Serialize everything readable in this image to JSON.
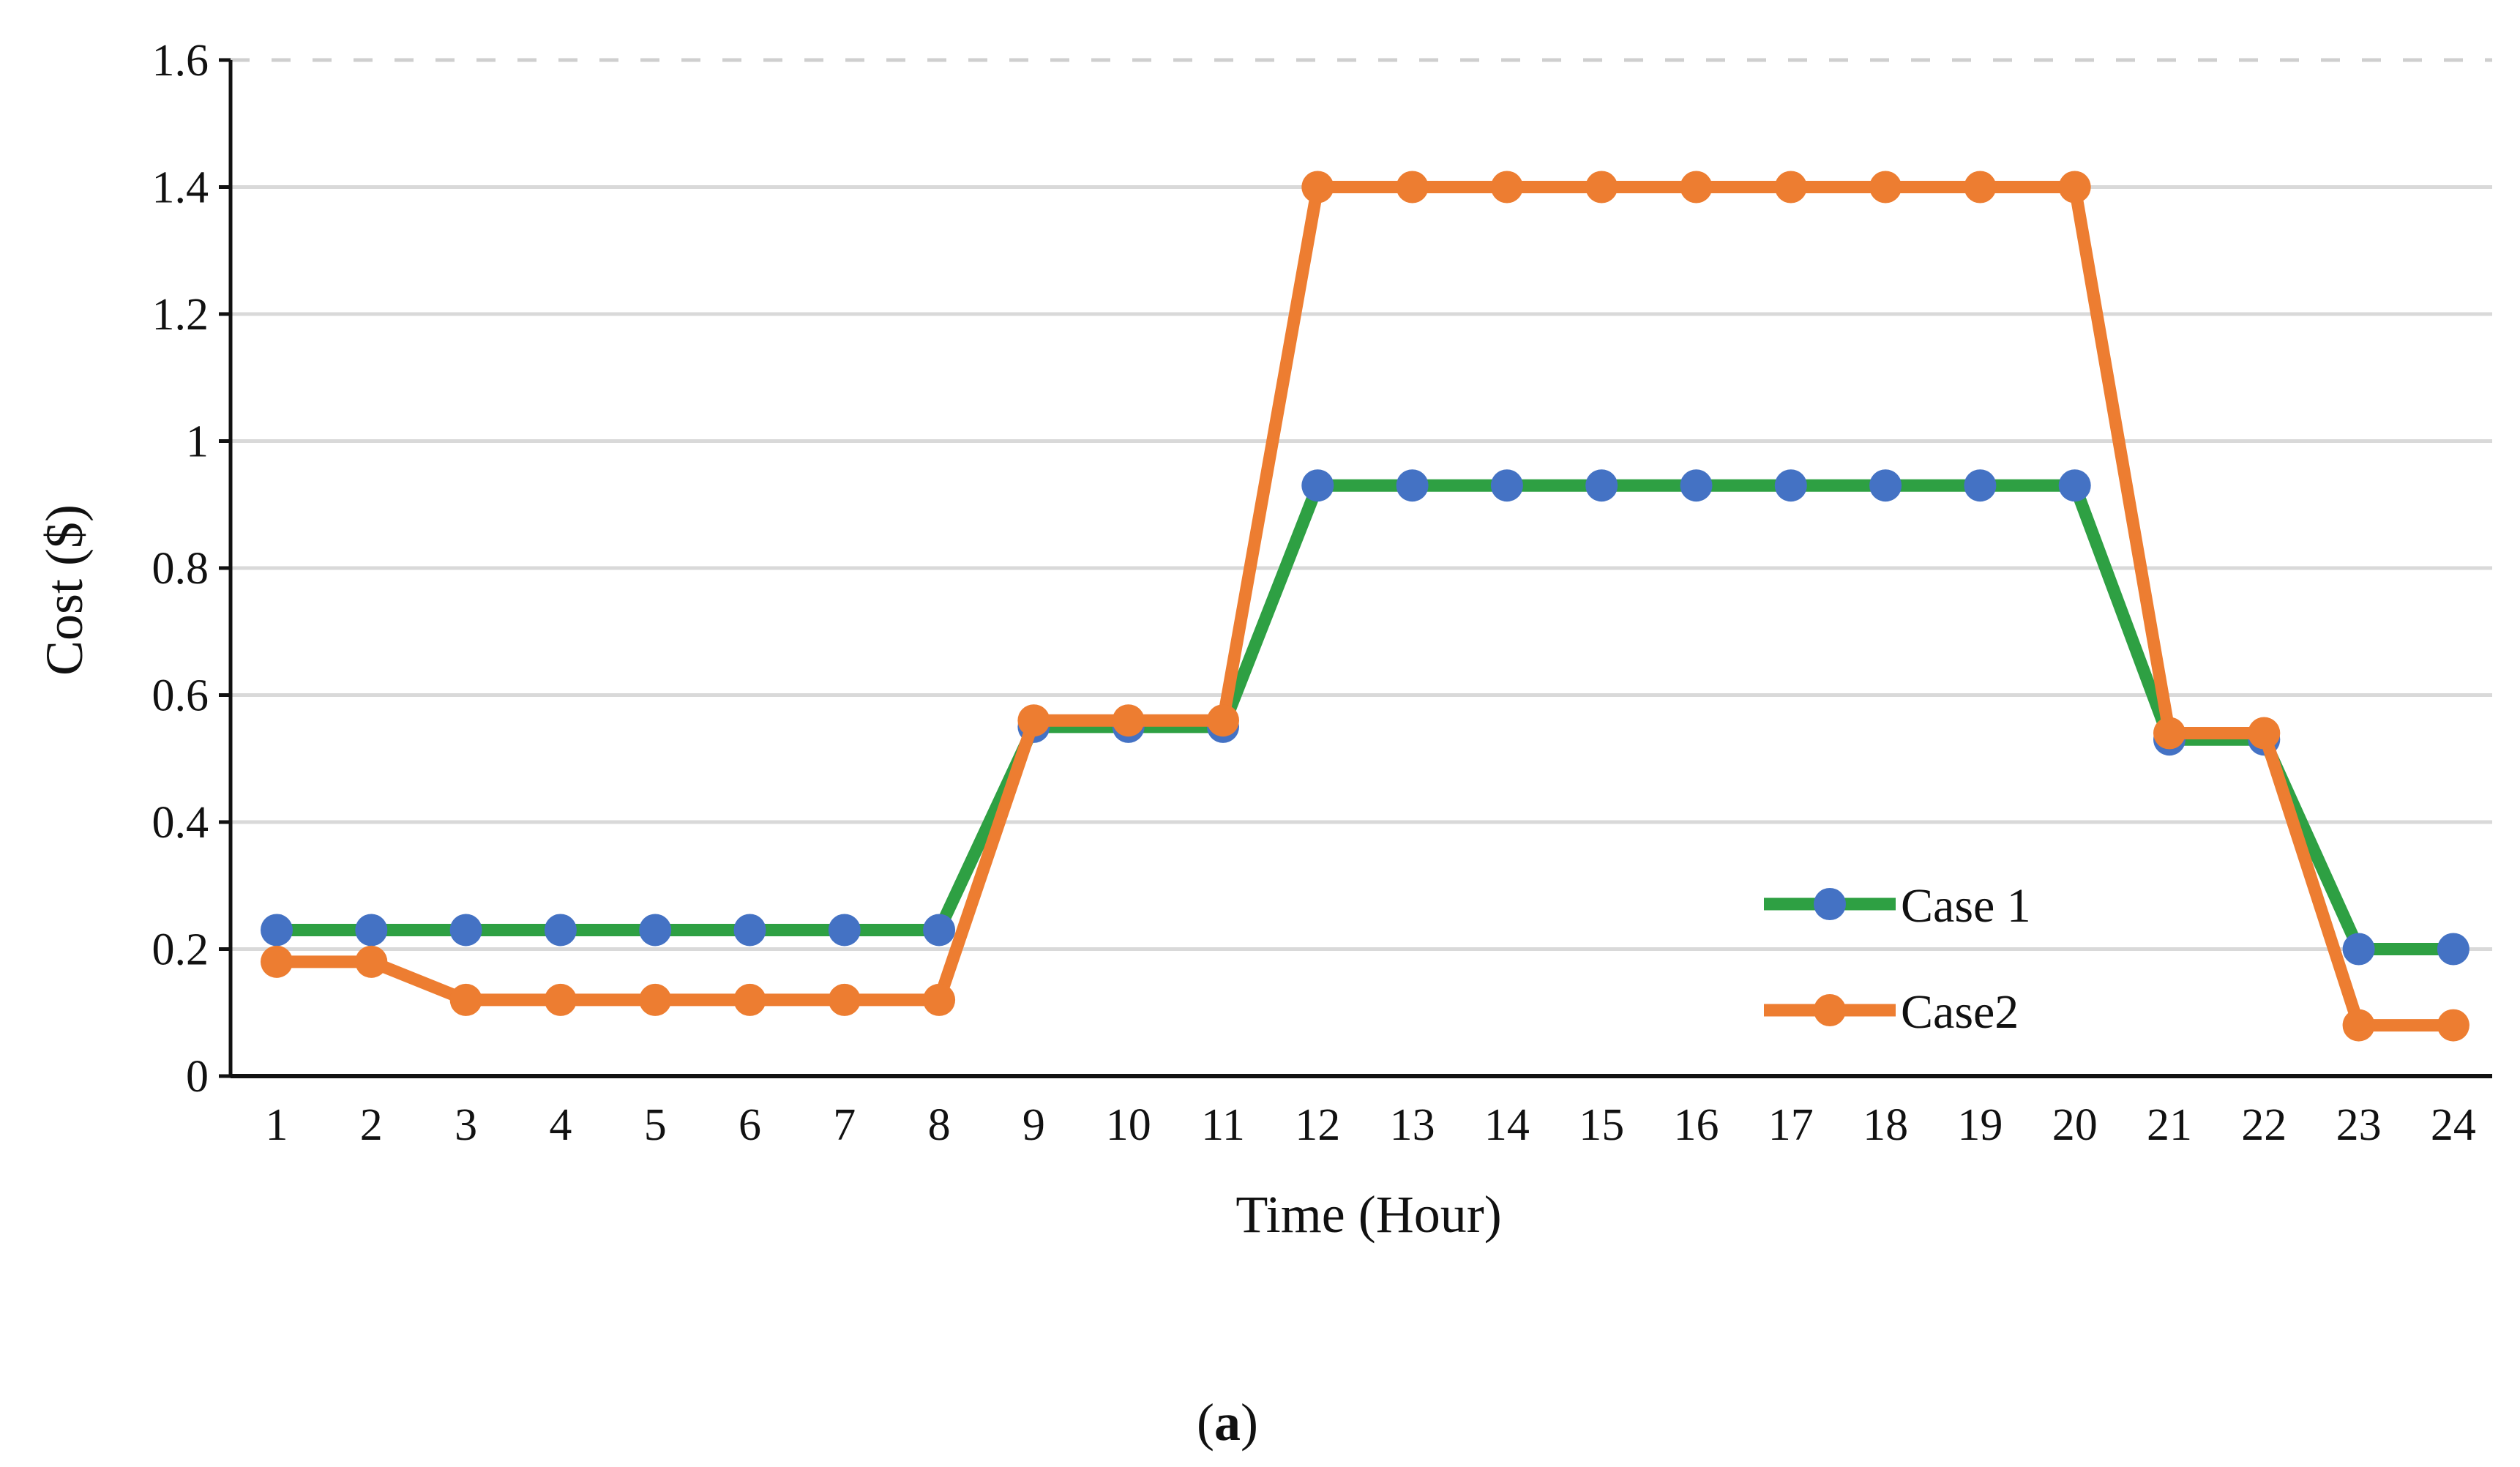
{
  "chart_data": {
    "type": "line",
    "xlabel": "Time (Hour)",
    "ylabel": "Cost ($)",
    "ylim": [
      0,
      1.6
    ],
    "yticks": [
      "0",
      "0.2",
      "0.4",
      "0.6",
      "0.8",
      "1",
      "1.2",
      "1.4",
      "1.6"
    ],
    "ytick_values": [
      0,
      0.2,
      0.4,
      0.6,
      0.8,
      1,
      1.2,
      1.4,
      1.6
    ],
    "categories": [
      "1",
      "2",
      "3",
      "4",
      "5",
      "6",
      "7",
      "8",
      "9",
      "10",
      "11",
      "12",
      "13",
      "14",
      "15",
      "16",
      "17",
      "18",
      "19",
      "20",
      "21",
      "22",
      "23",
      "24"
    ],
    "grid": true,
    "legend_position": "bottom-right",
    "series": [
      {
        "name": "Case 1",
        "line_color": "#2ea043",
        "marker_color": "#4472c4",
        "values": [
          0.23,
          0.23,
          0.23,
          0.23,
          0.23,
          0.23,
          0.23,
          0.23,
          0.55,
          0.55,
          0.55,
          0.93,
          0.93,
          0.93,
          0.93,
          0.93,
          0.93,
          0.93,
          0.93,
          0.93,
          0.53,
          0.53,
          0.2,
          0.2
        ]
      },
      {
        "name": "Case2",
        "line_color": "#ed7d31",
        "marker_color": "#ed7d31",
        "values": [
          0.18,
          0.18,
          0.12,
          0.12,
          0.12,
          0.12,
          0.12,
          0.12,
          0.56,
          0.56,
          0.56,
          1.4,
          1.4,
          1.4,
          1.4,
          1.4,
          1.4,
          1.4,
          1.4,
          1.4,
          0.54,
          0.54,
          0.08,
          0.08
        ]
      }
    ]
  },
  "caption": {
    "open": "(",
    "letter": "a",
    "close": ")"
  }
}
